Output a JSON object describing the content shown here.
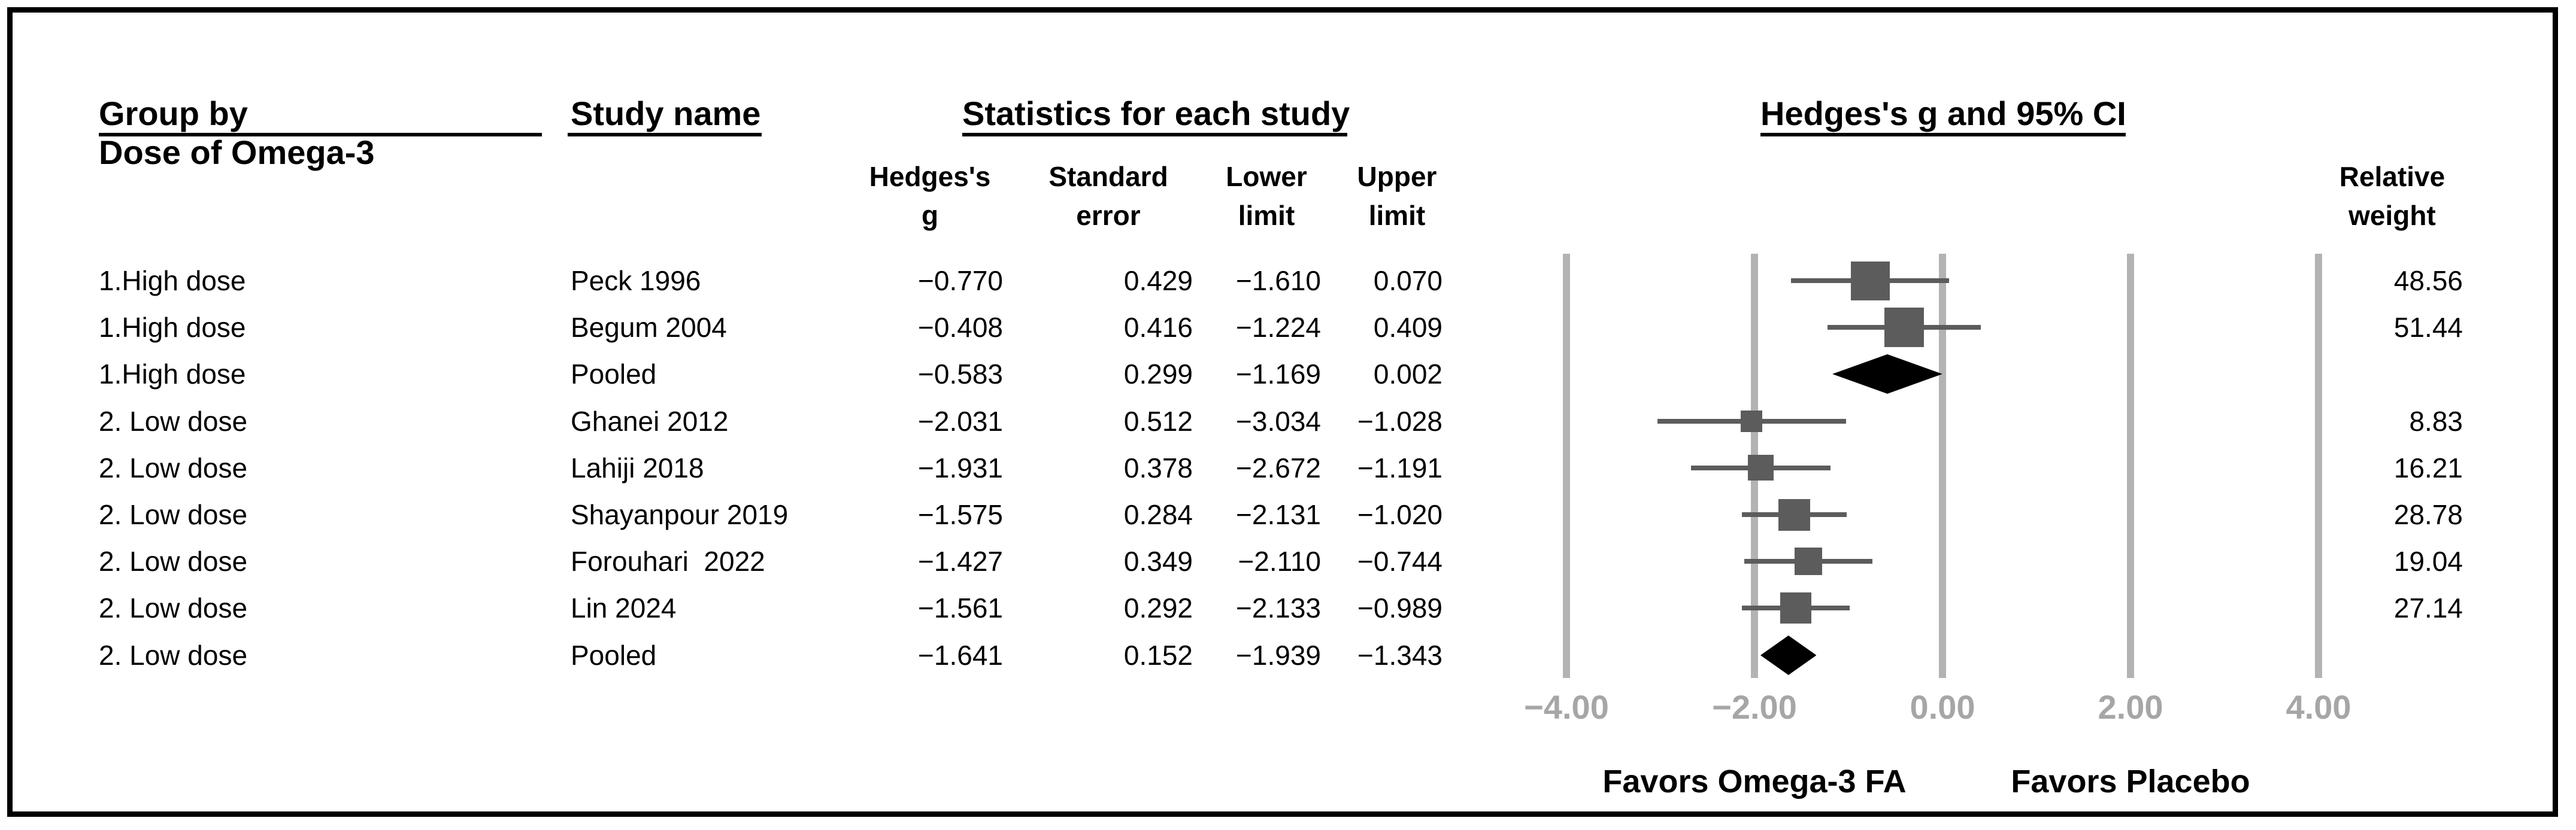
{
  "figure": {
    "columns": {
      "group_header_line1": "Group by",
      "group_header_line2": "Dose of Omega-3",
      "study_header": "Study name",
      "stats_header": "Statistics for each study",
      "stat_cols": [
        {
          "line1": "Hedges's",
          "line2": "g"
        },
        {
          "line1": "Standard",
          "line2": "error"
        },
        {
          "line1": "Lower",
          "line2": "limit"
        },
        {
          "line1": "Upper",
          "line2": "limit"
        }
      ],
      "plot_header": "Hedges's g and 95% CI",
      "weight_header_line1": "Relative",
      "weight_header_line2": "weight"
    },
    "footer": {
      "left_label": "Favors Omega-3 FA",
      "right_label": "Favors Placebo"
    }
  },
  "colors": {
    "marker": "#5c5c5c",
    "pooled_diamond": "#000000",
    "gridline": "#b3b3b3",
    "axis_label": "#a6a6a6",
    "text": "#000000",
    "background": "#ffffff"
  },
  "chart_data": {
    "type": "forest",
    "effect_measure": "Hedges's g",
    "title": "Hedges's g and 95% CI",
    "x_axis": {
      "tick_values": [
        -4,
        -2,
        0,
        2,
        4
      ],
      "tick_labels": [
        "−4.00",
        "−2.00",
        "0.00",
        "2.00",
        "4.00"
      ],
      "range": [
        -4,
        4
      ],
      "grid": true
    },
    "legend": {
      "left": "Favors Omega-3 FA",
      "right": "Favors Placebo"
    },
    "groups": [
      "1.High dose",
      "2. Low dose"
    ],
    "rows": [
      {
        "group": "1.High dose",
        "study": "Peck 1996",
        "kind": "study",
        "g": -0.77,
        "se": 0.429,
        "lower": -1.61,
        "upper": 0.07,
        "weight": 48.56,
        "display": {
          "g": "−0.770",
          "se": "0.429",
          "lower": "−1.610",
          "upper": "0.070",
          "weight": "48.56"
        }
      },
      {
        "group": "1.High dose",
        "study": "Begum 2004",
        "kind": "study",
        "g": -0.408,
        "se": 0.416,
        "lower": -1.224,
        "upper": 0.409,
        "weight": 51.44,
        "display": {
          "g": "−0.408",
          "se": "0.416",
          "lower": "−1.224",
          "upper": "0.409",
          "weight": "51.44"
        }
      },
      {
        "group": "1.High dose",
        "study": "Pooled",
        "kind": "pooled",
        "g": -0.583,
        "se": 0.299,
        "lower": -1.169,
        "upper": 0.002,
        "weight": null,
        "display": {
          "g": "−0.583",
          "se": "0.299",
          "lower": "−1.169",
          "upper": "0.002",
          "weight": ""
        }
      },
      {
        "group": "2. Low dose",
        "study": "Ghanei 2012",
        "kind": "study",
        "g": -2.031,
        "se": 0.512,
        "lower": -3.034,
        "upper": -1.028,
        "weight": 8.83,
        "display": {
          "g": "−2.031",
          "se": "0.512",
          "lower": "−3.034",
          "upper": "−1.028",
          "weight": "8.83"
        }
      },
      {
        "group": "2. Low dose",
        "study": "Lahiji 2018",
        "kind": "study",
        "g": -1.931,
        "se": 0.378,
        "lower": -2.672,
        "upper": -1.191,
        "weight": 16.21,
        "display": {
          "g": "−1.931",
          "se": "0.378",
          "lower": "−2.672",
          "upper": "−1.191",
          "weight": "16.21"
        }
      },
      {
        "group": "2. Low dose",
        "study": "Shayanpour 2019",
        "kind": "study",
        "g": -1.575,
        "se": 0.284,
        "lower": -2.131,
        "upper": -1.02,
        "weight": 28.78,
        "display": {
          "g": "−1.575",
          "se": "0.284",
          "lower": "−2.131",
          "upper": "−1.020",
          "weight": "28.78"
        }
      },
      {
        "group": "2. Low dose",
        "study": "Forouhari  2022",
        "kind": "study",
        "g": -1.427,
        "se": 0.349,
        "lower": -2.11,
        "upper": -0.744,
        "weight": 19.04,
        "display": {
          "g": "−1.427",
          "se": "0.349",
          "lower": "−2.110",
          "upper": "−0.744",
          "weight": "19.04"
        }
      },
      {
        "group": "2. Low dose",
        "study": "Lin 2024",
        "kind": "study",
        "g": -1.561,
        "se": 0.292,
        "lower": -2.133,
        "upper": -0.989,
        "weight": 27.14,
        "display": {
          "g": "−1.561",
          "se": "0.292",
          "lower": "−2.133",
          "upper": "−0.989",
          "weight": "27.14"
        }
      },
      {
        "group": "2. Low dose",
        "study": "Pooled",
        "kind": "pooled",
        "g": -1.641,
        "se": 0.152,
        "lower": -1.939,
        "upper": -1.343,
        "weight": null,
        "display": {
          "g": "−1.641",
          "se": "0.152",
          "lower": "−1.939",
          "upper": "−1.343",
          "weight": ""
        }
      }
    ]
  }
}
